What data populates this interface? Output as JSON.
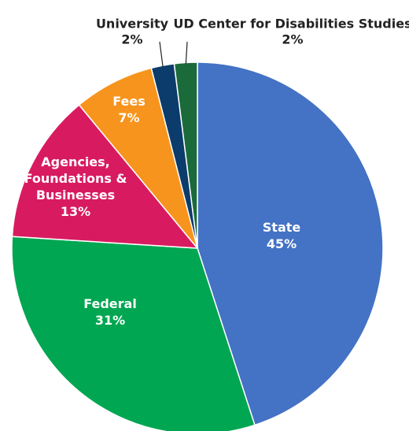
{
  "chart_data": {
    "type": "pie",
    "slices": [
      {
        "label_lines": [
          "State"
        ],
        "value_label": "45%",
        "value": 45,
        "color": "#4472C4"
      },
      {
        "label_lines": [
          "Federal"
        ],
        "value_label": "31%",
        "value": 31,
        "color": "#00A651"
      },
      {
        "label_lines": [
          "Agencies,",
          "Foundations &",
          "Businesses"
        ],
        "value_label": "13%",
        "value": 13,
        "color": "#D81B60"
      },
      {
        "label_lines": [
          "Fees"
        ],
        "value_label": "7%",
        "value": 7,
        "color": "#F7941D"
      },
      {
        "label_lines": [
          "University"
        ],
        "value_label": "2%",
        "value": 2,
        "color": "#0B3C6B"
      },
      {
        "label_lines": [
          "UD Center for Disabilities Studies"
        ],
        "value_label": "2%",
        "value": 2,
        "color": "#1B6B3A"
      }
    ]
  }
}
